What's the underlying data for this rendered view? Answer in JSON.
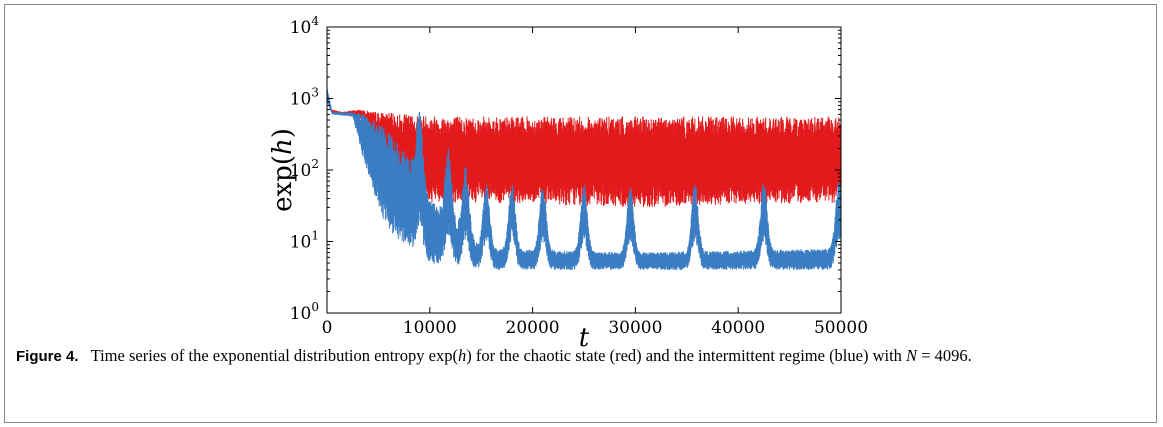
{
  "chart_data": {
    "type": "line",
    "xlabel": "t",
    "ylabel": "exp(h)",
    "xlim": [
      0,
      50000
    ],
    "ylim": [
      1,
      10000
    ],
    "y_scale": "log",
    "x_ticks": [
      "0",
      "10000",
      "20000",
      "30000",
      "40000",
      "50000"
    ],
    "y_ticks": [
      {
        "base": "10",
        "exp": "0"
      },
      {
        "base": "10",
        "exp": "1"
      },
      {
        "base": "10",
        "exp": "2"
      },
      {
        "base": "10",
        "exp": "3"
      },
      {
        "base": "10",
        "exp": "4"
      }
    ],
    "grid": false,
    "legend": "none",
    "series": [
      {
        "color": "#e31a1c",
        "envelope_upper": [
          [
            0,
            1500
          ],
          [
            200,
            900
          ],
          [
            500,
            700
          ],
          [
            1500,
            650
          ],
          [
            3000,
            700
          ],
          [
            5000,
            650
          ],
          [
            8000,
            600
          ],
          [
            15000,
            560
          ],
          [
            30000,
            560
          ],
          [
            50000,
            560
          ]
        ],
        "envelope_lower": [
          [
            0,
            900
          ],
          [
            500,
            620
          ],
          [
            1500,
            580
          ],
          [
            2500,
            560
          ],
          [
            3500,
            500
          ],
          [
            4500,
            200
          ],
          [
            5500,
            100
          ],
          [
            6500,
            60
          ],
          [
            7500,
            40
          ],
          [
            9000,
            35
          ],
          [
            15000,
            35
          ],
          [
            30000,
            30
          ],
          [
            50000,
            35
          ]
        ]
      },
      {
        "color": "#3a7dc2",
        "envelope_upper": [
          [
            0,
            1500
          ],
          [
            500,
            650
          ],
          [
            2500,
            640
          ],
          [
            3500,
            600
          ],
          [
            4500,
            500
          ],
          [
            5500,
            400
          ],
          [
            6500,
            300
          ],
          [
            8000,
            150
          ],
          [
            10000,
            40
          ],
          [
            15000,
            8
          ],
          [
            30000,
            7
          ],
          [
            50000,
            8
          ]
        ],
        "envelope_lower": [
          [
            0,
            900
          ],
          [
            500,
            600
          ],
          [
            2500,
            560
          ],
          [
            3500,
            150
          ],
          [
            4500,
            50
          ],
          [
            5500,
            20
          ],
          [
            6500,
            12
          ],
          [
            8000,
            8
          ],
          [
            10000,
            5
          ],
          [
            15000,
            4
          ],
          [
            30000,
            4
          ],
          [
            50000,
            4
          ]
        ],
        "burst_peaks_t": [
          9000,
          11800,
          13500,
          15500,
          18000,
          21000,
          25000,
          29500,
          35800,
          42500,
          49800
        ]
      }
    ]
  },
  "caption": {
    "label": "Figure 4.",
    "text1": "Time series of the exponential distribution entropy exp(",
    "var_h": "h",
    "text2": ") for the chaotic state (red) and the intermittent regime (blue) with ",
    "var_N": "N",
    "text3": " = 4096."
  }
}
